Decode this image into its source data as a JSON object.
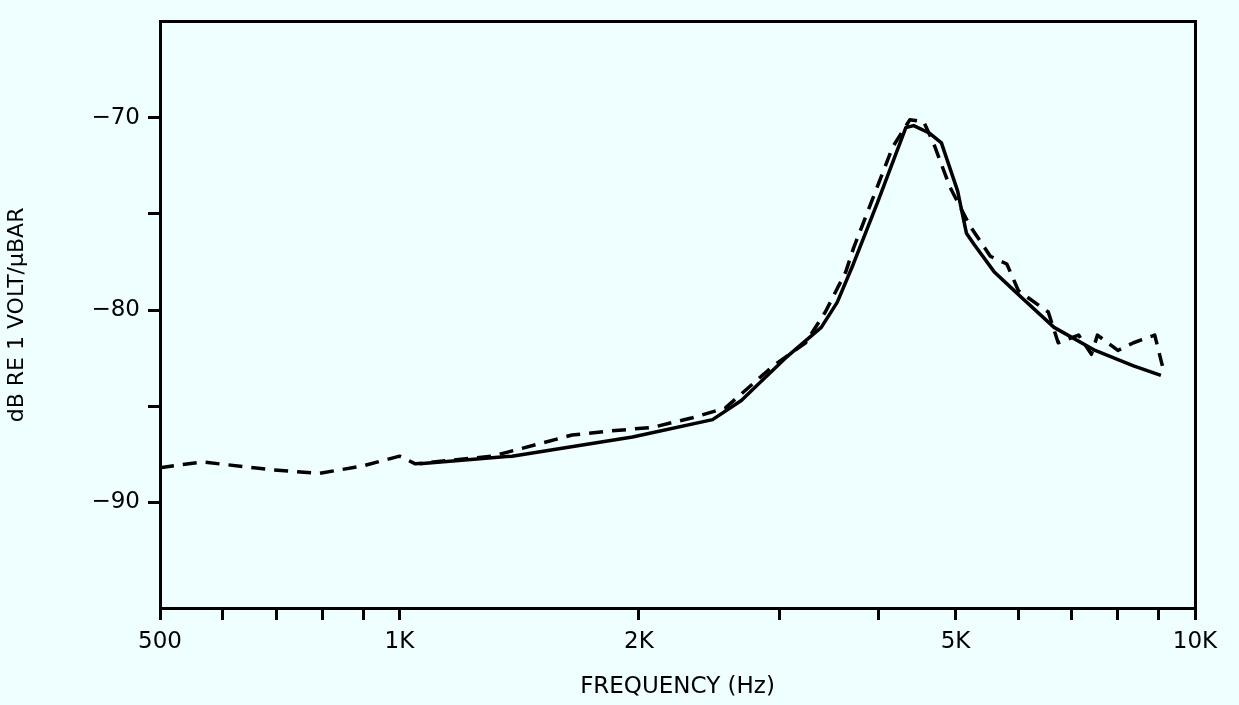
{
  "chart_data": {
    "type": "line",
    "xlabel": "FREQUENCY (Hz)",
    "ylabel": "dB RE 1 VOLT/μBAR",
    "log": "x",
    "grid": false,
    "legend": false,
    "marker": "none",
    "xlim": [
      500,
      10000
    ],
    "ylim": [
      -95.5,
      -65
    ],
    "xticks": [
      500,
      {
        "value": 600,
        "label": null
      },
      {
        "value": 700,
        "label": null
      },
      {
        "value": 800,
        "label": null
      },
      {
        "value": 900,
        "label": null
      },
      {
        "value": 1000,
        "label": "1K"
      },
      {
        "value": 2000,
        "label": "2K"
      },
      {
        "value": 3000,
        "label": null
      },
      {
        "value": 4000,
        "label": null
      },
      {
        "value": 5000,
        "label": "5K"
      },
      {
        "value": 6000,
        "label": null
      },
      {
        "value": 7000,
        "label": null
      },
      {
        "value": 8000,
        "label": null
      },
      {
        "value": 9000,
        "label": null
      },
      {
        "value": 10000,
        "label": "10K"
      }
    ],
    "yticks": [
      -70,
      {
        "value": -75,
        "label": null
      },
      -80,
      {
        "value": -85,
        "label": null
      },
      -90
    ],
    "series": [
      {
        "color": "#000000",
        "line_style": "dashed",
        "x": [
          500,
          565,
          689,
          792,
          901,
          1000,
          1047,
          1307,
          1485,
          1648,
          1830,
          2080,
          2335,
          2567,
          2950,
          3240,
          3430,
          3640,
          3720,
          4170,
          4380,
          4560,
          4690,
          4920,
          5210,
          5530,
          5800,
          6000,
          6540,
          6730,
          7140,
          7410,
          7540,
          8000,
          8370,
          8900,
          9100
        ],
        "values": [
          -88.2,
          -87.9,
          -88.3,
          -88.5,
          -88.1,
          -87.6,
          -88.0,
          -87.6,
          -87.0,
          -86.5,
          -86.3,
          -86.1,
          -85.6,
          -85.1,
          -82.9,
          -81.7,
          -80.1,
          -78.0,
          -76.8,
          -71.5,
          -70.1,
          -70.2,
          -71.3,
          -73.6,
          -75.6,
          -77.2,
          -77.6,
          -79.0,
          -80.1,
          -81.7,
          -81.3,
          -82.3,
          -81.3,
          -82.1,
          -81.7,
          -81.3,
          -82.9
        ]
      },
      {
        "color": "#000000",
        "line_style": "solid",
        "x": [
          1060,
          1385,
          1963,
          2475,
          2690,
          3055,
          3390,
          3550,
          3720,
          3990,
          4330,
          4430,
          4640,
          4800,
          5030,
          5160,
          5280,
          5590,
          5930,
          6650,
          7490,
          8370,
          9060
        ],
        "values": [
          -88.0,
          -87.6,
          -86.6,
          -85.7,
          -84.7,
          -82.5,
          -80.9,
          -79.6,
          -77.6,
          -74.4,
          -70.5,
          -70.4,
          -70.8,
          -71.3,
          -73.8,
          -76.0,
          -76.6,
          -78.0,
          -79.0,
          -80.9,
          -82.1,
          -82.9,
          -83.4
        ]
      }
    ]
  }
}
